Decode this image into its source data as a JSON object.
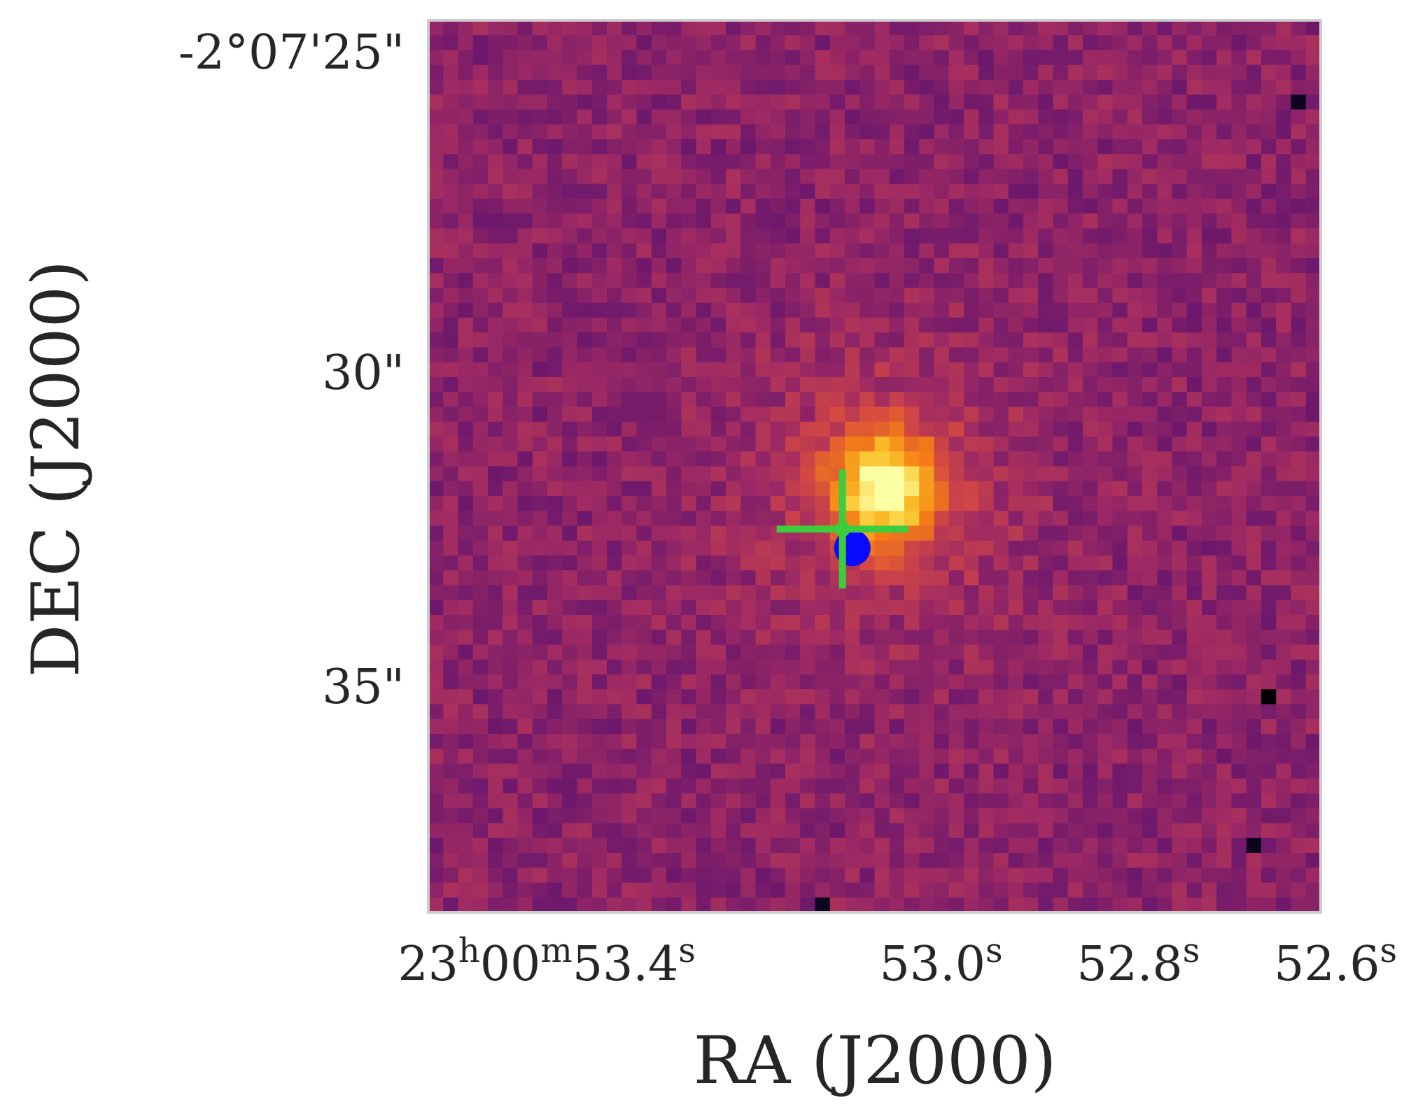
{
  "chart_data": {
    "type": "heatmap",
    "title": "",
    "xlabel": "RA (J2000)",
    "ylabel": "DEC (J2000)",
    "colormap": "inferno",
    "grid": false,
    "x_ticks": [
      {
        "value": "23h00m53.4s",
        "parts": [
          {
            "t": "23"
          },
          {
            "t": "h",
            "sup": true
          },
          {
            "t": "00"
          },
          {
            "t": "m",
            "sup": true
          },
          {
            "t": "53.4"
          },
          {
            "t": "s",
            "sup": true
          }
        ]
      },
      {
        "value": "53.0s",
        "parts": [
          {
            "t": "53.0"
          },
          {
            "t": "s",
            "sup": true
          }
        ]
      },
      {
        "value": "52.8s",
        "parts": [
          {
            "t": "52.8"
          },
          {
            "t": "s",
            "sup": true
          }
        ]
      },
      {
        "value": "52.6s",
        "parts": [
          {
            "t": "52.6"
          },
          {
            "t": "s",
            "sup": true
          }
        ]
      }
    ],
    "y_ticks": [
      {
        "value": "-2°07'25\"",
        "label": "-2°07'25\""
      },
      {
        "value": "30\"",
        "label": "30\""
      },
      {
        "value": "35\"",
        "label": "35\""
      }
    ],
    "markers": [
      {
        "name": "source-cross",
        "shape": "plus",
        "color": "#3ccc3c",
        "ra_s": 53.1,
        "dec_arcsec": 32.5
      },
      {
        "name": "source-dot",
        "shape": "circle",
        "color": "#0b0bff",
        "ra_s": 53.09,
        "dec_arcsec": 32.8
      }
    ],
    "image": {
      "columns": 60,
      "rows": 60,
      "peak_column": 30.7,
      "peak_row": 31.5,
      "background_level": 0.4,
      "hot_pixels": [
        {
          "column": 56.5,
          "row": 45.5,
          "level": 0.0
        },
        {
          "column": 58.5,
          "row": 5.5,
          "level": 0.05
        },
        {
          "column": 55.5,
          "row": 55.5,
          "level": 0.05
        },
        {
          "column": 26.5,
          "row": 59.5,
          "level": 0.05
        }
      ]
    }
  }
}
